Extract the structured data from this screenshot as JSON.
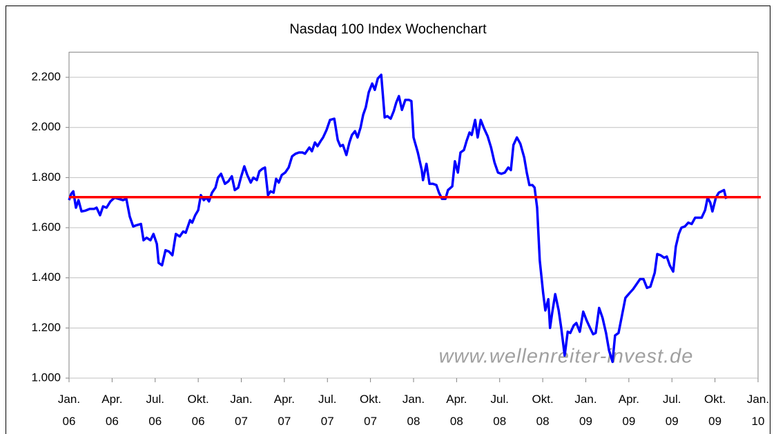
{
  "chart_data": {
    "type": "line",
    "title": "Nasdaq 100 Index Wochenchart",
    "watermark": "www.wellenreiter-invest.de",
    "color": "#0000ff",
    "reference_line": {
      "value": 1722,
      "color": "#ff0000"
    },
    "grid": true,
    "ylim": [
      1000,
      2300
    ],
    "yticks": [
      {
        "value": 1000,
        "label": "1.000"
      },
      {
        "value": 1200,
        "label": "1.200"
      },
      {
        "value": 1400,
        "label": "1.400"
      },
      {
        "value": 1600,
        "label": "1.600"
      },
      {
        "value": 1800,
        "label": "1.800"
      },
      {
        "value": 2000,
        "label": "2.000"
      },
      {
        "value": 2200,
        "label": "2.200"
      }
    ],
    "xlim": [
      0,
      16
    ],
    "xticks": [
      {
        "value": 0,
        "label": "Jan. 06"
      },
      {
        "value": 1,
        "label": "Apr. 06"
      },
      {
        "value": 2,
        "label": "Jul. 06"
      },
      {
        "value": 3,
        "label": "Okt. 06"
      },
      {
        "value": 4,
        "label": "Jan. 07"
      },
      {
        "value": 5,
        "label": "Apr. 07"
      },
      {
        "value": 6,
        "label": "Jul. 07"
      },
      {
        "value": 7,
        "label": "Okt. 07"
      },
      {
        "value": 8,
        "label": "Jan. 08"
      },
      {
        "value": 9,
        "label": "Apr. 08"
      },
      {
        "value": 10,
        "label": "Jul. 08"
      },
      {
        "value": 11,
        "label": "Okt. 08"
      },
      {
        "value": 12,
        "label": "Jan. 09"
      },
      {
        "value": 13,
        "label": "Apr. 09"
      },
      {
        "value": 14,
        "label": "Jul. 09"
      },
      {
        "value": 15,
        "label": "Okt. 09"
      },
      {
        "value": 16,
        "label": "Jan. 10"
      }
    ],
    "x": [
      0,
      0.05,
      0.1,
      0.16,
      0.22,
      0.29,
      0.38,
      0.48,
      0.58,
      0.64,
      0.72,
      0.79,
      0.87,
      0.96,
      1.06,
      1.15,
      1.25,
      1.33,
      1.41,
      1.49,
      1.57,
      1.67,
      1.73,
      1.8,
      1.89,
      1.96,
      2.04,
      2.08,
      2.16,
      2.24,
      2.32,
      2.4,
      2.48,
      2.57,
      2.65,
      2.71,
      2.81,
      2.86,
      2.93,
      3.0,
      3.06,
      3.13,
      3.19,
      3.25,
      3.32,
      3.4,
      3.46,
      3.53,
      3.62,
      3.7,
      3.78,
      3.85,
      3.93,
      3.99,
      4.07,
      4.14,
      4.22,
      4.28,
      4.36,
      4.42,
      4.49,
      4.55,
      4.62,
      4.68,
      4.75,
      4.81,
      4.87,
      4.94,
      5.02,
      5.1,
      5.18,
      5.26,
      5.34,
      5.42,
      5.48,
      5.58,
      5.64,
      5.71,
      5.77,
      5.84,
      5.9,
      5.98,
      6.06,
      6.16,
      6.24,
      6.3,
      6.36,
      6.44,
      6.51,
      6.57,
      6.64,
      6.7,
      6.77,
      6.83,
      6.89,
      6.96,
      7.04,
      7.1,
      7.17,
      7.25,
      7.33,
      7.39,
      7.47,
      7.54,
      7.6,
      7.66,
      7.73,
      7.81,
      7.89,
      7.95,
      8.0,
      8.1,
      8.19,
      8.22,
      8.3,
      8.37,
      8.45,
      8.53,
      8.59,
      8.66,
      8.74,
      8.8,
      8.9,
      8.96,
      9.03,
      9.09,
      9.17,
      9.23,
      9.3,
      9.35,
      9.43,
      9.49,
      9.56,
      9.64,
      9.72,
      9.8,
      9.88,
      9.96,
      10.04,
      10.12,
      10.2,
      10.26,
      10.32,
      10.4,
      10.48,
      10.57,
      10.63,
      10.69,
      10.76,
      10.81,
      10.87,
      10.93,
      11.01,
      11.06,
      11.13,
      11.17,
      11.22,
      11.29,
      11.37,
      11.43,
      11.51,
      11.58,
      11.64,
      11.72,
      11.78,
      11.86,
      11.94,
      12.02,
      12.1,
      12.17,
      12.23,
      12.31,
      12.39,
      12.47,
      12.54,
      12.62,
      12.68,
      12.76,
      12.84,
      12.92,
      13.02,
      13.1,
      13.18,
      13.26,
      13.34,
      13.42,
      13.5,
      13.6,
      13.66,
      13.74,
      13.82,
      13.88,
      13.95,
      14.03,
      14.09,
      14.16,
      14.22,
      14.3,
      14.38,
      14.46,
      14.54,
      14.62,
      14.69,
      14.77,
      14.83,
      14.89,
      14.94,
      15.02,
      15.09,
      15.15,
      15.21,
      15.26
    ],
    "values": [
      1710,
      1735,
      1745,
      1680,
      1710,
      1665,
      1668,
      1675,
      1675,
      1680,
      1650,
      1685,
      1680,
      1705,
      1720,
      1715,
      1710,
      1715,
      1645,
      1605,
      1610,
      1615,
      1550,
      1560,
      1550,
      1575,
      1535,
      1460,
      1450,
      1510,
      1505,
      1490,
      1575,
      1565,
      1585,
      1580,
      1630,
      1620,
      1650,
      1670,
      1730,
      1710,
      1720,
      1705,
      1740,
      1760,
      1800,
      1815,
      1775,
      1785,
      1805,
      1750,
      1760,
      1800,
      1845,
      1810,
      1780,
      1800,
      1790,
      1825,
      1835,
      1840,
      1730,
      1745,
      1740,
      1795,
      1780,
      1810,
      1820,
      1840,
      1885,
      1895,
      1900,
      1900,
      1895,
      1920,
      1905,
      1940,
      1925,
      1945,
      1960,
      1990,
      2030,
      2035,
      1950,
      1925,
      1930,
      1890,
      1940,
      1970,
      1985,
      1960,
      2000,
      2050,
      2080,
      2140,
      2175,
      2150,
      2195,
      2210,
      2040,
      2045,
      2035,
      2065,
      2100,
      2125,
      2070,
      2110,
      2110,
      2105,
      1960,
      1900,
      1830,
      1790,
      1855,
      1775,
      1775,
      1770,
      1740,
      1715,
      1715,
      1750,
      1765,
      1865,
      1820,
      1900,
      1910,
      1945,
      1980,
      1970,
      2030,
      1960,
      2030,
      1995,
      1965,
      1920,
      1860,
      1820,
      1815,
      1820,
      1840,
      1830,
      1930,
      1960,
      1935,
      1880,
      1820,
      1770,
      1770,
      1760,
      1680,
      1470,
      1340,
      1270,
      1315,
      1200,
      1260,
      1335,
      1270,
      1200,
      1090,
      1185,
      1180,
      1210,
      1220,
      1185,
      1265,
      1230,
      1200,
      1175,
      1180,
      1280,
      1240,
      1180,
      1110,
      1065,
      1170,
      1180,
      1250,
      1320,
      1340,
      1355,
      1375,
      1395,
      1395,
      1360,
      1365,
      1420,
      1495,
      1490,
      1480,
      1485,
      1450,
      1425,
      1525,
      1575,
      1600,
      1605,
      1620,
      1615,
      1640,
      1640,
      1640,
      1670,
      1720,
      1700,
      1665,
      1720,
      1740,
      1745,
      1750,
      1715
    ]
  }
}
